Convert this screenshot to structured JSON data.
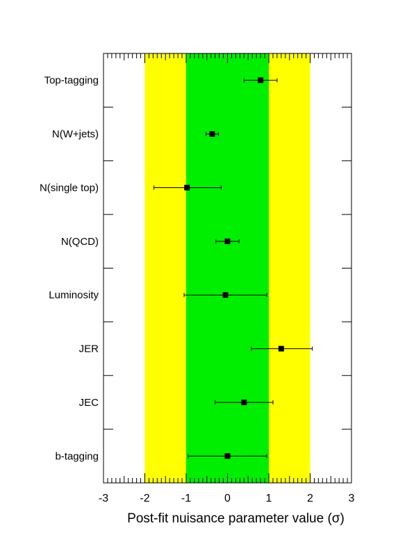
{
  "chart_data": {
    "type": "scatter",
    "orientation": "horizontal",
    "xlabel": "Post-fit nuisance parameter value (σ)",
    "xlim": [
      -3,
      3
    ],
    "xticks": [
      "-3",
      "-2",
      "-1",
      "0",
      "1",
      "2",
      "3"
    ],
    "bands": [
      {
        "name": "2-sigma",
        "range": [
          -2,
          2
        ],
        "color": "#ffff00"
      },
      {
        "name": "1-sigma",
        "range": [
          -1,
          1
        ],
        "color": "#00ee00"
      }
    ],
    "categories": [
      "Top-tagging",
      "N(W+jets)",
      "N(single top)",
      "N(QCD)",
      "Luminosity",
      "JER",
      "JEC",
      "b-tagging"
    ],
    "points": [
      {
        "value": 0.8,
        "err_low": 0.4,
        "err_high": 0.4
      },
      {
        "value": -0.37,
        "err_low": 0.15,
        "err_high": 0.15
      },
      {
        "value": -0.98,
        "err_low": 0.8,
        "err_high": 0.83
      },
      {
        "value": 0.0,
        "err_low": 0.28,
        "err_high": 0.28
      },
      {
        "value": -0.05,
        "err_low": 1.0,
        "err_high": 1.0
      },
      {
        "value": 1.3,
        "err_low": 0.72,
        "err_high": 0.75
      },
      {
        "value": 0.4,
        "err_low": 0.7,
        "err_high": 0.7
      },
      {
        "value": 0.0,
        "err_low": 0.95,
        "err_high": 0.95
      }
    ],
    "marker_color": "#000000"
  }
}
